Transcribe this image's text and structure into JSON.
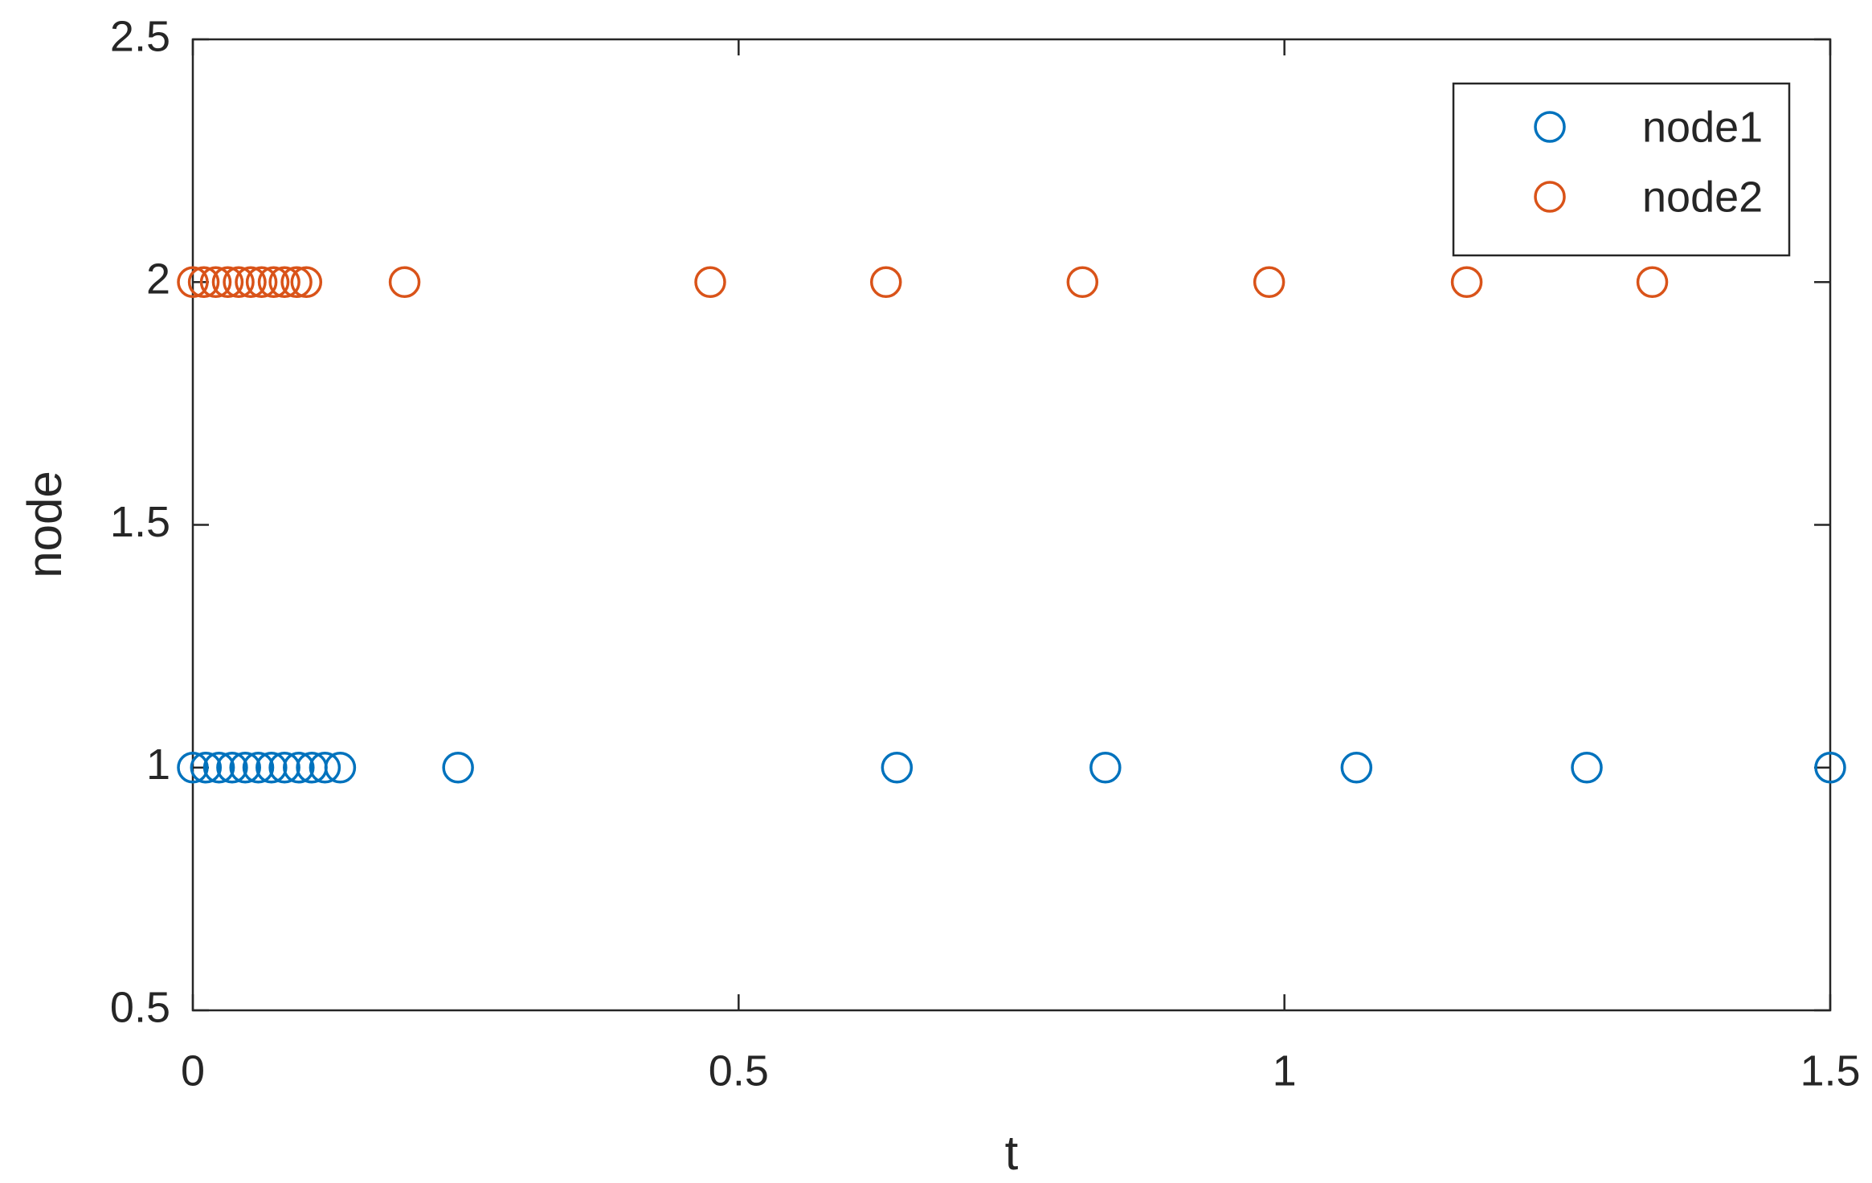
{
  "chart_data": {
    "type": "scatter",
    "xlabel": "t",
    "ylabel": "node",
    "xlim": [
      0,
      1.5
    ],
    "ylim": [
      0.5,
      2.5
    ],
    "xticks": [
      0,
      0.5,
      1,
      1.5
    ],
    "yticks": [
      0.5,
      1,
      1.5,
      2,
      2.5
    ],
    "legend": "upper right",
    "series": [
      {
        "name": "node1",
        "color": "#0072BD",
        "x": [
          0,
          0.012,
          0.024,
          0.036,
          0.048,
          0.06,
          0.072,
          0.084,
          0.097,
          0.109,
          0.121,
          0.135,
          0.243,
          0.645,
          0.836,
          1.066,
          1.277,
          1.5
        ],
        "values": [
          1,
          1,
          1,
          1,
          1,
          1,
          1,
          1,
          1,
          1,
          1,
          1,
          1,
          1,
          1,
          1,
          1,
          1
        ]
      },
      {
        "name": "node2",
        "color": "#D95319",
        "x": [
          0,
          0.01,
          0.021,
          0.032,
          0.042,
          0.053,
          0.063,
          0.074,
          0.084,
          0.095,
          0.104,
          0.194,
          0.474,
          0.635,
          0.815,
          0.986,
          1.167,
          1.337
        ],
        "values": [
          2,
          2,
          2,
          2,
          2,
          2,
          2,
          2,
          2,
          2,
          2,
          2,
          2,
          2,
          2,
          2,
          2,
          2
        ]
      }
    ]
  }
}
